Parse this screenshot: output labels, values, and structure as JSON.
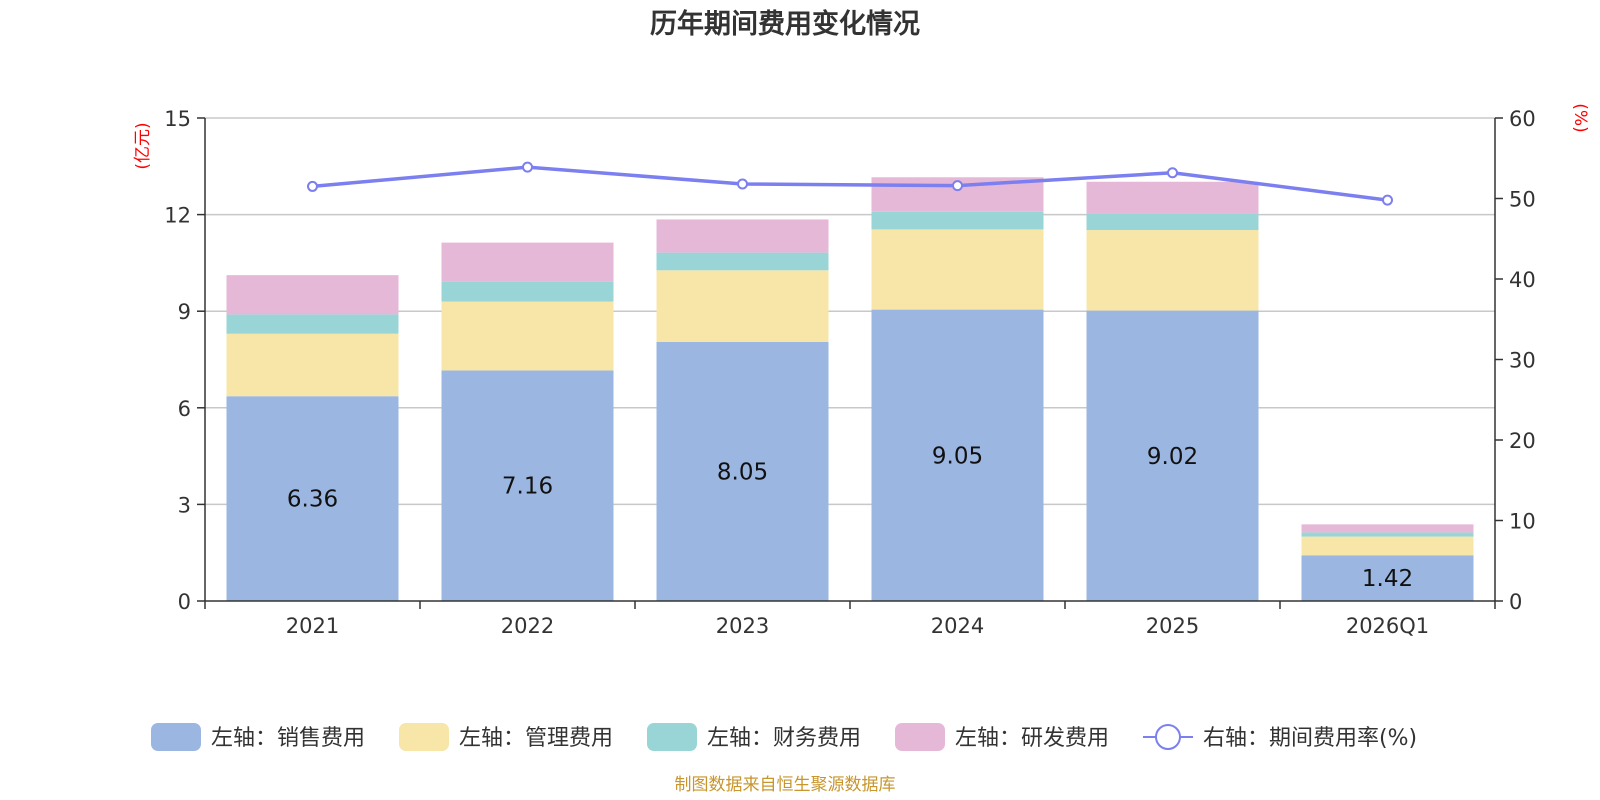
{
  "chart_data": {
    "type": "bar",
    "title": "历年期间费用变化情况",
    "categories": [
      "2021",
      "2022",
      "2023",
      "2024",
      "2025",
      "2026Q1"
    ],
    "series": [
      {
        "name": "左轴：销售费用",
        "axis": "left",
        "color": "#9bb7e1",
        "values": [
          6.36,
          7.16,
          8.05,
          9.05,
          9.02,
          1.42
        ],
        "labels": [
          "6.36",
          "7.16",
          "8.05",
          "9.05",
          "9.02",
          "1.42"
        ]
      },
      {
        "name": "左轴：管理费用",
        "axis": "left",
        "color": "#f8e6a8",
        "values": [
          1.94,
          2.14,
          2.22,
          2.49,
          2.5,
          0.58
        ]
      },
      {
        "name": "左轴：财务费用",
        "axis": "left",
        "color": "#99d5d6",
        "values": [
          0.6,
          0.61,
          0.55,
          0.55,
          0.5,
          0.13
        ]
      },
      {
        "name": "左轴：研发费用",
        "axis": "left",
        "color": "#e6b8d8",
        "values": [
          1.22,
          1.22,
          1.03,
          1.07,
          1.0,
          0.25
        ]
      },
      {
        "name": "右轴：期间费用率(%)",
        "axis": "right",
        "type": "line",
        "color": "#7b7fef",
        "values": [
          51.5,
          53.9,
          51.8,
          51.6,
          53.2,
          49.8
        ]
      }
    ],
    "left_axis": {
      "unit": "(亿元)",
      "min": 0,
      "max": 15,
      "ticks": [
        0,
        3,
        6,
        9,
        12,
        15
      ],
      "tick_labels": [
        "0",
        "3",
        "6",
        "9",
        "12",
        "15"
      ]
    },
    "right_axis": {
      "unit": "(%)",
      "min": 0,
      "max": 60,
      "ticks": [
        0,
        10,
        20,
        30,
        40,
        50,
        60
      ],
      "tick_labels": [
        "0",
        "10",
        "20",
        "30",
        "40",
        "50",
        "60"
      ]
    },
    "grid": true,
    "legend_position": "bottom",
    "source": "制图数据来自恒生聚源数据库"
  }
}
